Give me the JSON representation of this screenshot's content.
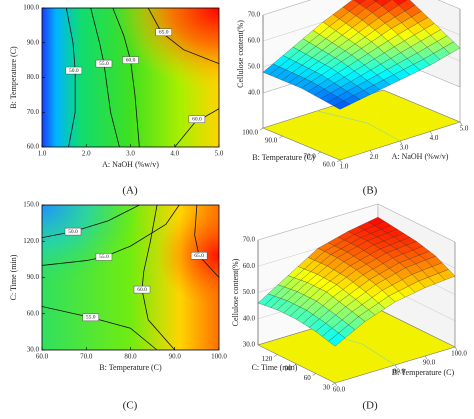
{
  "chart_data": [
    {
      "type": "contour",
      "panel": "(A)",
      "xlabel": "A: NaOH (%w/v)",
      "ylabel": "B: Temperature (C)",
      "xlim": [
        1,
        5
      ],
      "ylim": [
        60,
        100
      ],
      "xticks": [
        {
          "value": 1,
          "label": "1.0"
        },
        {
          "value": 2,
          "label": "2.0"
        },
        {
          "value": 3,
          "label": "3.0"
        },
        {
          "value": 4,
          "label": "4.0"
        },
        {
          "value": 5,
          "label": "5.0"
        }
      ],
      "yticks": [
        {
          "value": 60,
          "label": "60.0"
        },
        {
          "value": 70,
          "label": "70.0"
        },
        {
          "value": 80,
          "label": "80.0"
        },
        {
          "value": 90,
          "label": "90.0"
        },
        {
          "value": 100,
          "label": "100.0"
        }
      ],
      "contours": [
        {
          "label": "50.0",
          "points": [
            [
              1.55,
              100
            ],
            [
              1.7,
              90
            ],
            [
              1.75,
              82
            ],
            [
              1.75,
              70
            ],
            [
              1.6,
              60
            ]
          ],
          "label_at": [
            1.72,
            82
          ]
        },
        {
          "label": "55.0",
          "points": [
            [
              2.1,
              100
            ],
            [
              2.3,
              90
            ],
            [
              2.4,
              84
            ],
            [
              2.55,
              70
            ],
            [
              2.75,
              60
            ]
          ],
          "label_at": [
            2.4,
            84
          ]
        },
        {
          "label": "60.0",
          "points": [
            [
              2.6,
              100
            ],
            [
              2.85,
              92
            ],
            [
              3.0,
              85
            ],
            [
              3.1,
              75
            ],
            [
              3.2,
              60
            ]
          ],
          "label_at": [
            3.0,
            85
          ]
        },
        {
          "label": "65.0",
          "points": [
            [
              3.4,
              100
            ],
            [
              3.7,
              93
            ],
            [
              4.2,
              88
            ],
            [
              5,
              84
            ]
          ],
          "label_at": [
            3.75,
            93
          ]
        },
        {
          "label": "60.0",
          "points": [
            [
              4.0,
              60
            ],
            [
              4.45,
              67
            ],
            [
              5,
              71
            ]
          ],
          "label_at": [
            4.5,
            68
          ]
        }
      ]
    },
    {
      "type": "surface3d",
      "panel": "(B)",
      "zlabel": "Cellulose content(%)",
      "xlabel": "A: NaOH (%w/v)",
      "ylabel": "B: Temperature (C)",
      "x": [
        1,
        2,
        3,
        4,
        5
      ],
      "y": [
        60,
        70,
        80,
        90,
        100
      ],
      "z": [
        [
          46,
          48,
          50,
          52,
          55
        ],
        [
          47,
          50,
          53,
          56,
          59
        ],
        [
          48,
          52,
          56,
          60,
          63
        ],
        [
          48,
          53,
          58,
          63,
          67
        ],
        [
          48,
          54,
          60,
          65,
          69
        ]
      ],
      "xlim": [
        1,
        5
      ],
      "ylim": [
        60,
        100
      ],
      "zlim": [
        40,
        70
      ],
      "xticks": [
        {
          "value": 1,
          "label": "1.0"
        },
        {
          "value": 2,
          "label": "2.0"
        },
        {
          "value": 3,
          "label": "3.0"
        },
        {
          "value": 4,
          "label": "4.0"
        },
        {
          "value": 5,
          "label": "5.0"
        }
      ],
      "yticks": [
        {
          "value": 60,
          "label": "60.0"
        },
        {
          "value": 70,
          "label": "70.0"
        },
        {
          "value": 90,
          "label": "90.0"
        },
        {
          "value": 100,
          "label": "100.0"
        }
      ],
      "zticks": [
        {
          "value": 40,
          "label": "40.0"
        },
        {
          "value": 50,
          "label": "50.0"
        },
        {
          "value": 60,
          "label": "60.0"
        },
        {
          "value": 70,
          "label": "70.0"
        }
      ]
    },
    {
      "type": "contour",
      "panel": "(C)",
      "xlabel": "B: Temperature (C)",
      "ylabel": "C: Time (min)",
      "xlim": [
        60,
        100
      ],
      "ylim": [
        30,
        150
      ],
      "xticks": [
        {
          "value": 60,
          "label": "60.0"
        },
        {
          "value": 70,
          "label": "70.0"
        },
        {
          "value": 80,
          "label": "80.0"
        },
        {
          "value": 90,
          "label": "90.0"
        },
        {
          "value": 100,
          "label": "100.0"
        }
      ],
      "yticks": [
        {
          "value": 30,
          "label": "30.0"
        },
        {
          "value": 60,
          "label": "60.0"
        },
        {
          "value": 90,
          "label": "90.0"
        },
        {
          "value": 120,
          "label": "120.0"
        },
        {
          "value": 150,
          "label": "150.0"
        }
      ],
      "contours": [
        {
          "label": "50.0",
          "points": [
            [
              60,
              123
            ],
            [
              67,
              128
            ],
            [
              75,
              137
            ],
            [
              82,
              150
            ]
          ],
          "label_at": [
            67,
            128
          ]
        },
        {
          "label": "55.0",
          "points": [
            [
              60,
              100
            ],
            [
              70,
              104
            ],
            [
              74,
              107
            ],
            [
              80,
              116
            ],
            [
              88,
              134
            ],
            [
              91,
              150
            ]
          ],
          "label_at": [
            74,
            107
          ]
        },
        {
          "label": "60.0",
          "points": [
            [
              86,
              150
            ],
            [
              84.5,
              120
            ],
            [
              83,
              95
            ],
            [
              82.6,
              80
            ],
            [
              84,
              55
            ],
            [
              90,
              30
            ]
          ],
          "label_at": [
            82.6,
            80
          ]
        },
        {
          "label": "55.0",
          "points": [
            [
              60,
              66
            ],
            [
              71,
              57
            ],
            [
              80,
              48
            ],
            [
              86,
              30
            ]
          ],
          "label_at": [
            71,
            57
          ]
        },
        {
          "label": "65.0",
          "points": [
            [
              95,
              150
            ],
            [
              94.5,
              125
            ],
            [
              95.5,
              108
            ],
            [
              100,
              90
            ]
          ],
          "label_at": [
            95.5,
            108
          ]
        }
      ]
    },
    {
      "type": "surface3d",
      "panel": "(D)",
      "zlabel": "Cellulose content(%)",
      "xlabel": "B: Temperature (C)",
      "ylabel": "C: Time (min)",
      "x": [
        60,
        70,
        80,
        90,
        100
      ],
      "y": [
        30,
        60,
        90,
        120,
        150
      ],
      "z": [
        [
          44,
          50,
          54,
          56,
          57
        ],
        [
          46,
          52,
          57,
          60,
          61
        ],
        [
          47,
          54,
          59,
          62,
          63
        ],
        [
          47,
          54,
          60,
          63,
          64
        ],
        [
          46,
          53,
          60,
          63,
          65
        ]
      ],
      "xlim": [
        60,
        100
      ],
      "ylim": [
        30,
        150
      ],
      "zlim": [
        30,
        70
      ],
      "xticks": [
        {
          "value": 60,
          "label": "60.0"
        },
        {
          "value": 80,
          "label": "80.0"
        },
        {
          "value": 90,
          "label": "90.0"
        },
        {
          "value": 100,
          "label": "100.0"
        }
      ],
      "yticks": [
        30,
        60,
        90,
        120
      ],
      "zticks": [
        {
          "value": 30,
          "label": "30.0"
        },
        {
          "value": 40,
          "label": "40.0"
        },
        {
          "value": 50,
          "label": "50.0"
        },
        {
          "value": 60,
          "label": "60.0"
        },
        {
          "value": 70,
          "label": "70.0"
        }
      ]
    }
  ]
}
